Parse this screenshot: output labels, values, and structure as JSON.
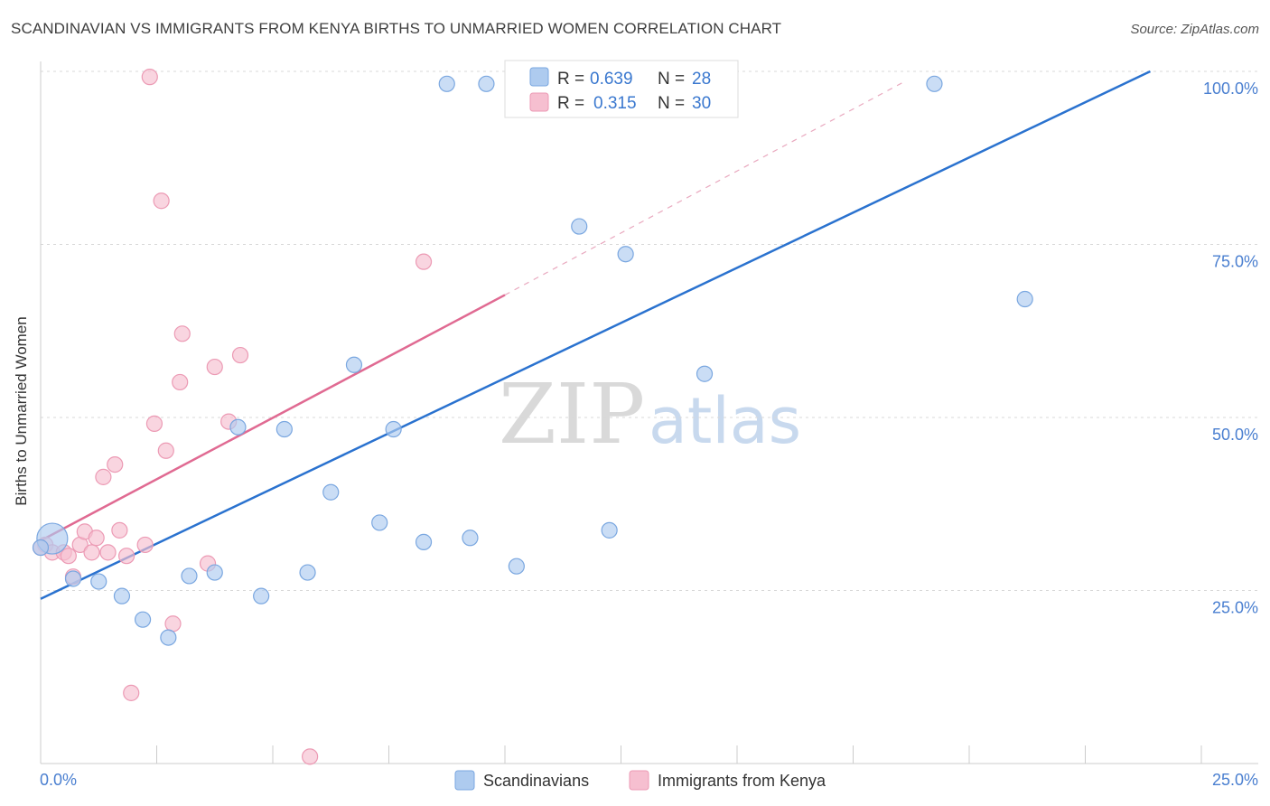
{
  "header": {
    "title": "SCANDINAVIAN VS IMMIGRANTS FROM KENYA BIRTHS TO UNMARRIED WOMEN CORRELATION CHART",
    "source": "Source: ZipAtlas.com"
  },
  "watermark": {
    "zip": "ZIP",
    "atlas": "atlas"
  },
  "colors": {
    "blue_fill": "#aecbef",
    "blue_stroke": "#7aa7e0",
    "blue_line": "#2a72cf",
    "pink_fill": "#f6bfd0",
    "pink_stroke": "#ec9ab4",
    "pink_line": "#e06a92",
    "grid": "#d8d8d8",
    "axis": "#cccccc"
  },
  "chart_data": {
    "type": "scatter",
    "title": "SCANDINAVIAN VS IMMIGRANTS FROM KENYA BIRTHS TO UNMARRIED WOMEN CORRELATION CHART",
    "xlabel": "",
    "ylabel": "Births to Unmarried Women",
    "xlim": [
      0,
      25
    ],
    "ylim": [
      0,
      100
    ],
    "x_tick_labels": [
      "0.0%",
      "25.0%"
    ],
    "y_ticks": [
      25,
      50,
      75,
      100
    ],
    "y_tick_labels": [
      "25.0%",
      "50.0%",
      "75.0%",
      "100.0%"
    ],
    "grid": true,
    "legend_position": "bottom-center",
    "stats": [
      {
        "r_label": "R =",
        "r_value": "0.639",
        "n_label": "N =",
        "n_value": "28"
      },
      {
        "r_label": "R =",
        "r_value": "0.315",
        "n_label": "N =",
        "n_value": "30"
      }
    ],
    "series": [
      {
        "name": "Scandinavians",
        "color": "#aecbef",
        "points": [
          {
            "x": 0.25,
            "y": 32.5,
            "big": true
          },
          {
            "x": 0.7,
            "y": 26.7
          },
          {
            "x": 1.25,
            "y": 26.3
          },
          {
            "x": 1.75,
            "y": 24.2
          },
          {
            "x": 2.2,
            "y": 20.8
          },
          {
            "x": 2.75,
            "y": 18.2
          },
          {
            "x": 3.2,
            "y": 27.1
          },
          {
            "x": 3.75,
            "y": 27.6
          },
          {
            "x": 4.25,
            "y": 48.6
          },
          {
            "x": 4.75,
            "y": 24.2
          },
          {
            "x": 5.25,
            "y": 48.3
          },
          {
            "x": 5.75,
            "y": 27.6
          },
          {
            "x": 6.25,
            "y": 39.2
          },
          {
            "x": 6.75,
            "y": 57.6
          },
          {
            "x": 7.3,
            "y": 34.8
          },
          {
            "x": 7.6,
            "y": 48.3
          },
          {
            "x": 8.25,
            "y": 32.0
          },
          {
            "x": 8.75,
            "y": 98.2
          },
          {
            "x": 9.25,
            "y": 32.6
          },
          {
            "x": 9.6,
            "y": 98.2
          },
          {
            "x": 10.25,
            "y": 28.5
          },
          {
            "x": 11.6,
            "y": 77.6
          },
          {
            "x": 12.25,
            "y": 33.7
          },
          {
            "x": 12.6,
            "y": 73.6
          },
          {
            "x": 14.3,
            "y": 56.3
          },
          {
            "x": 19.25,
            "y": 98.2
          },
          {
            "x": 21.2,
            "y": 67.1
          },
          {
            "x": 0.0,
            "y": 31.2
          }
        ]
      },
      {
        "name": "Immigrants from Kenya",
        "color": "#f6bfd0",
        "points": [
          {
            "x": 0.1,
            "y": 31.6
          },
          {
            "x": 0.25,
            "y": 30.5
          },
          {
            "x": 0.5,
            "y": 30.5
          },
          {
            "x": 0.6,
            "y": 30.0
          },
          {
            "x": 0.7,
            "y": 27.0
          },
          {
            "x": 0.85,
            "y": 31.6
          },
          {
            "x": 0.95,
            "y": 33.5
          },
          {
            "x": 1.1,
            "y": 30.5
          },
          {
            "x": 1.2,
            "y": 32.6
          },
          {
            "x": 1.35,
            "y": 41.4
          },
          {
            "x": 1.45,
            "y": 30.5
          },
          {
            "x": 1.6,
            "y": 43.2
          },
          {
            "x": 1.7,
            "y": 33.7
          },
          {
            "x": 1.85,
            "y": 30.0
          },
          {
            "x": 1.95,
            "y": 10.2
          },
          {
            "x": 2.25,
            "y": 31.6
          },
          {
            "x": 2.35,
            "y": 99.2
          },
          {
            "x": 2.45,
            "y": 49.1
          },
          {
            "x": 2.6,
            "y": 81.3
          },
          {
            "x": 2.7,
            "y": 45.2
          },
          {
            "x": 2.85,
            "y": 20.2
          },
          {
            "x": 3.0,
            "y": 55.1
          },
          {
            "x": 3.05,
            "y": 62.1
          },
          {
            "x": 3.6,
            "y": 28.9
          },
          {
            "x": 3.75,
            "y": 57.3
          },
          {
            "x": 4.05,
            "y": 49.4
          },
          {
            "x": 4.3,
            "y": 59.0
          },
          {
            "x": 5.8,
            "y": 1.0
          },
          {
            "x": 8.25,
            "y": 72.5
          },
          {
            "x": 0.0,
            "y": 31.2
          }
        ]
      }
    ],
    "trend_lines": [
      {
        "series": "Scandinavians",
        "x1": 0,
        "y1": 23.8,
        "x2": 23.9,
        "y2": 100
      },
      {
        "series": "Immigrants from Kenya",
        "x1": 0,
        "y1": 32.2,
        "x2": 10.0,
        "y2": 67.7,
        "dashed_to_x": 18.6,
        "dashed_to_y": 98.5
      }
    ]
  }
}
